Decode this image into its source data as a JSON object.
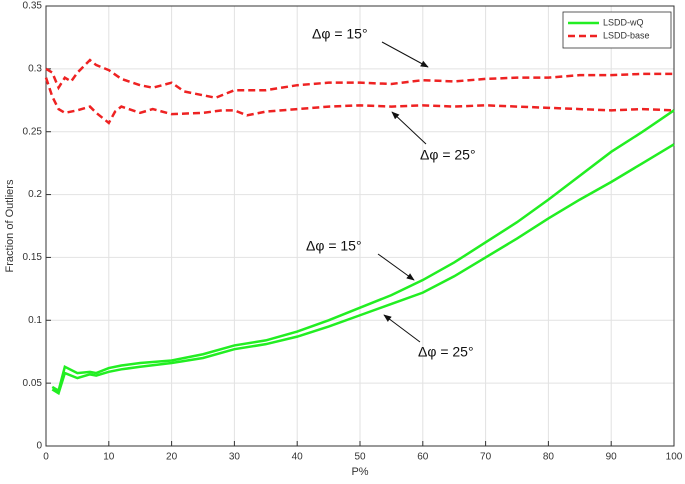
{
  "chart_data": {
    "type": "line",
    "xlabel": "P%",
    "ylabel": "Fraction of Outliers",
    "xlim": [
      0,
      100
    ],
    "xticks": [
      0,
      10,
      20,
      30,
      40,
      50,
      60,
      70,
      80,
      90,
      100
    ],
    "ylim": [
      0,
      0.35
    ],
    "yticks": [
      0,
      0.05,
      0.1,
      0.15,
      0.2,
      0.25,
      0.3,
      0.35
    ],
    "grid": true,
    "legend": "upper right",
    "annotations": [
      "Δφ = 15°",
      "Δφ = 25°",
      "Δφ = 15°",
      "Δφ = 25°"
    ],
    "series": [
      {
        "name": "LSDD-wQ",
        "color": "#22ee22",
        "dash": "solid",
        "x": [
          1,
          2,
          3,
          5,
          7,
          8,
          10,
          12,
          15,
          20,
          25,
          30,
          35,
          40,
          45,
          50,
          55,
          60,
          65,
          70,
          75,
          80,
          85,
          90,
          95,
          100
        ],
        "values": [
          0.047,
          0.044,
          0.063,
          0.058,
          0.059,
          0.058,
          0.062,
          0.064,
          0.066,
          0.068,
          0.073,
          0.08,
          0.084,
          0.091,
          0.1,
          0.11,
          0.12,
          0.132,
          0.146,
          0.162,
          0.178,
          0.196,
          0.215,
          0.234,
          0.25,
          0.267
        ]
      },
      {
        "color": "#22ee22",
        "dash": "solid",
        "x": [
          1,
          2,
          3,
          5,
          7,
          8,
          10,
          12,
          15,
          20,
          25,
          30,
          35,
          40,
          45,
          50,
          55,
          60,
          65,
          70,
          75,
          80,
          85,
          90,
          95,
          100
        ],
        "values": [
          0.045,
          0.042,
          0.058,
          0.054,
          0.057,
          0.056,
          0.059,
          0.061,
          0.063,
          0.066,
          0.07,
          0.077,
          0.081,
          0.087,
          0.095,
          0.104,
          0.113,
          0.122,
          0.135,
          0.15,
          0.165,
          0.181,
          0.196,
          0.21,
          0.225,
          0.24
        ]
      },
      {
        "name": "LSDD-base",
        "color": "#ee2222",
        "dash": "dashed",
        "x": [
          0,
          1,
          2,
          3,
          4,
          5,
          7,
          8,
          10,
          12,
          15,
          17,
          20,
          22,
          25,
          27,
          30,
          35,
          40,
          45,
          50,
          55,
          60,
          65,
          70,
          75,
          80,
          85,
          90,
          95,
          100
        ],
        "values": [
          0.3,
          0.297,
          0.285,
          0.293,
          0.29,
          0.297,
          0.307,
          0.303,
          0.299,
          0.292,
          0.287,
          0.285,
          0.289,
          0.282,
          0.279,
          0.277,
          0.283,
          0.283,
          0.287,
          0.289,
          0.289,
          0.288,
          0.291,
          0.29,
          0.292,
          0.293,
          0.293,
          0.295,
          0.295,
          0.296,
          0.296
        ]
      },
      {
        "color": "#ee2222",
        "dash": "dashed",
        "x": [
          0,
          1,
          2,
          3,
          5,
          7,
          8,
          10,
          11,
          12,
          15,
          17,
          20,
          25,
          28,
          30,
          32,
          35,
          40,
          45,
          50,
          55,
          60,
          65,
          70,
          75,
          80,
          85,
          90,
          95,
          100
        ],
        "values": [
          0.293,
          0.278,
          0.268,
          0.265,
          0.267,
          0.27,
          0.265,
          0.257,
          0.266,
          0.27,
          0.265,
          0.268,
          0.264,
          0.265,
          0.267,
          0.267,
          0.263,
          0.266,
          0.268,
          0.27,
          0.271,
          0.27,
          0.271,
          0.27,
          0.271,
          0.27,
          0.269,
          0.268,
          0.267,
          0.268,
          0.267
        ]
      }
    ]
  }
}
